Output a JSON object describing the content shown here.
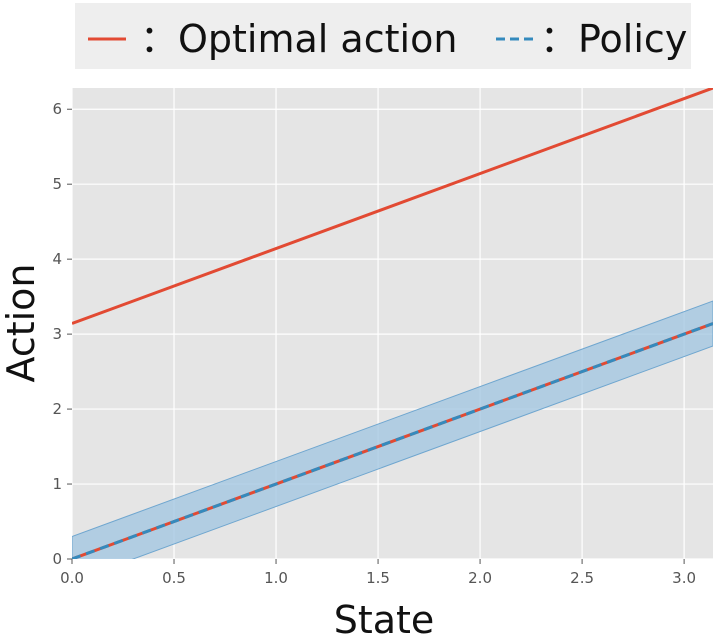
{
  "chart_data": {
    "type": "line",
    "xlabel": "State",
    "ylabel": "Action",
    "xlim": [
      0,
      3.14159
    ],
    "ylim": [
      0,
      6.28318
    ],
    "xticks": [
      "0.0",
      "0.5",
      "1.0",
      "1.5",
      "2.0",
      "2.5",
      "3.0"
    ],
    "yticks": [
      "0",
      "1",
      "2",
      "3",
      "4",
      "5",
      "6"
    ],
    "grid": true,
    "legend_position": "top",
    "series": [
      {
        "name": "Optimal action",
        "style": "solid",
        "color": "#e24a33",
        "x": [
          0,
          3.14159
        ],
        "y": [
          3.14159,
          6.28318
        ]
      },
      {
        "name": "Policy",
        "style": "dashed",
        "color": "#348abd",
        "x": [
          0,
          3.14159
        ],
        "y": [
          0,
          3.14159
        ],
        "band_lower": [
          -0.3,
          2.84159
        ],
        "band_upper": [
          0.3,
          3.44159
        ]
      },
      {
        "name": "",
        "style": "solid",
        "color": "#e24a33",
        "x": [
          0,
          3.14159
        ],
        "y": [
          0,
          3.14159
        ]
      }
    ]
  },
  "legend": {
    "entries": [
      {
        "label": "：Optimal action",
        "color": "#e24a33",
        "style": "solid"
      },
      {
        "label": "：Policy",
        "color": "#348abd",
        "style": "dashed"
      }
    ]
  },
  "colors": {
    "plot_background": "#e5e5e5",
    "grid": "#ffffff",
    "band": "#9fc4e0"
  }
}
